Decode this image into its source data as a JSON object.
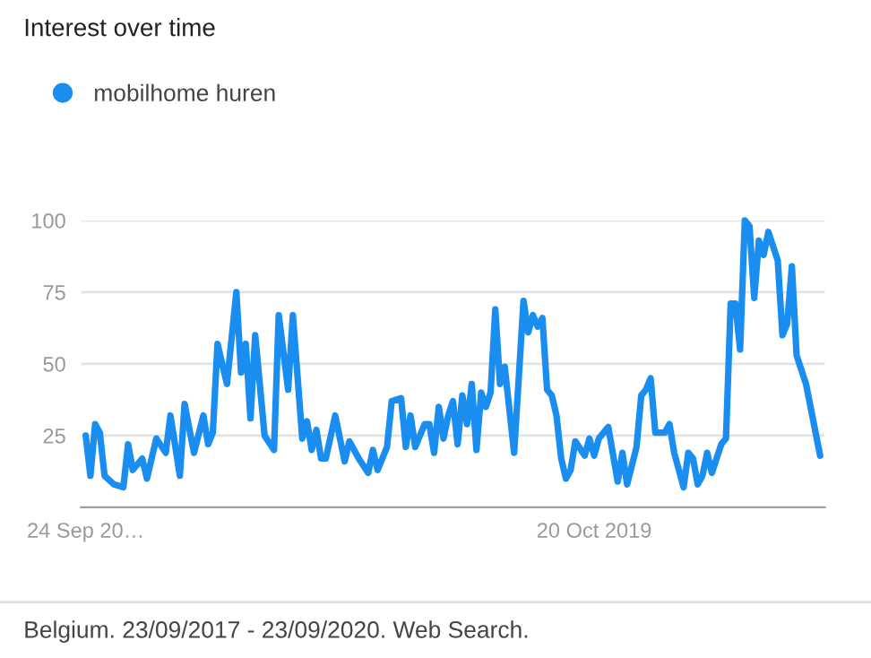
{
  "chart_data": {
    "type": "line",
    "title": "Interest over time",
    "x": [
      "2017-09-24",
      "2017-10-01",
      "2017-10-08",
      "2017-10-15",
      "2017-10-22",
      "2017-11-05",
      "2017-11-19",
      "2017-11-26",
      "2017-12-03",
      "2017-12-17",
      "2017-12-24",
      "2018-01-07",
      "2018-01-21",
      "2018-01-28",
      "2018-02-11",
      "2018-02-18",
      "2018-03-04",
      "2018-03-18",
      "2018-03-25",
      "2018-04-01",
      "2018-04-08",
      "2018-04-22",
      "2018-05-06",
      "2018-05-13",
      "2018-05-20",
      "2018-05-27",
      "2018-06-03",
      "2018-06-17",
      "2018-07-01",
      "2018-07-08",
      "2018-07-22",
      "2018-07-29",
      "2018-08-12",
      "2018-08-19",
      "2018-08-26",
      "2018-09-02",
      "2018-09-09",
      "2018-09-16",
      "2018-09-30",
      "2018-10-14",
      "2018-10-21",
      "2018-11-04",
      "2018-11-18",
      "2018-11-25",
      "2018-12-02",
      "2018-12-16",
      "2018-12-23",
      "2019-01-06",
      "2019-01-13",
      "2019-01-20",
      "2019-01-27",
      "2019-02-10",
      "2019-02-17",
      "2019-02-24",
      "2019-03-03",
      "2019-03-10",
      "2019-03-17",
      "2019-03-24",
      "2019-03-31",
      "2019-04-07",
      "2019-04-14",
      "2019-04-21",
      "2019-04-28",
      "2019-05-05",
      "2019-05-12",
      "2019-05-19",
      "2019-05-26",
      "2019-06-02",
      "2019-06-09",
      "2019-06-23",
      "2019-07-07",
      "2019-07-14",
      "2019-07-21",
      "2019-07-28",
      "2019-08-04",
      "2019-08-11",
      "2019-08-18",
      "2019-08-25",
      "2019-09-01",
      "2019-09-08",
      "2019-09-15",
      "2019-09-22",
      "2019-10-06",
      "2019-10-13",
      "2019-10-20",
      "2019-10-27",
      "2019-11-10",
      "2019-11-24",
      "2019-12-01",
      "2019-12-08",
      "2019-12-22",
      "2019-12-29",
      "2020-01-05",
      "2020-01-12",
      "2020-01-19",
      "2020-02-02",
      "2020-02-09",
      "2020-02-16",
      "2020-03-01",
      "2020-03-08",
      "2020-03-15",
      "2020-03-22",
      "2020-03-29",
      "2020-04-05",
      "2020-04-12",
      "2020-04-26",
      "2020-05-03",
      "2020-05-10",
      "2020-05-17",
      "2020-05-24",
      "2020-05-31",
      "2020-06-07",
      "2020-06-14",
      "2020-06-21",
      "2020-06-28",
      "2020-07-05",
      "2020-07-19",
      "2020-07-26",
      "2020-08-02",
      "2020-08-09",
      "2020-08-16",
      "2020-08-30",
      "2020-09-20"
    ],
    "series": [
      {
        "name": "mobilhome huren",
        "color": "#1a8ef0",
        "values": [
          25,
          11,
          29,
          26,
          11,
          8,
          7,
          22,
          13,
          17,
          10,
          24,
          19,
          32,
          11,
          36,
          19,
          32,
          22,
          26,
          57,
          43,
          75,
          47,
          57,
          31,
          60,
          25,
          20,
          67,
          41,
          67,
          24,
          30,
          20,
          27,
          17,
          17,
          32,
          16,
          23,
          17,
          12,
          20,
          13,
          21,
          37,
          38,
          21,
          32,
          21,
          29,
          29,
          19,
          35,
          24,
          32,
          37,
          22,
          39,
          29,
          43,
          20,
          40,
          35,
          40,
          69,
          43,
          49,
          19,
          72,
          61,
          67,
          63,
          66,
          41,
          39,
          32,
          17,
          10,
          13,
          23,
          18,
          24,
          18,
          24,
          28,
          9,
          19,
          8,
          21,
          39,
          41,
          45,
          26,
          26,
          29,
          19,
          7,
          19,
          17,
          8,
          11,
          19,
          12,
          22,
          24,
          71,
          71,
          55,
          100,
          98,
          73,
          93,
          88,
          96,
          86,
          60,
          64,
          84,
          53,
          43,
          18
        ]
      }
    ],
    "xlim": [
      "2017-09-17",
      "2020-09-27"
    ],
    "xticks": [
      {
        "value": "2017-09-24",
        "label": "24 Sep 20…"
      },
      {
        "value": "2019-10-20",
        "label": "20 Oct 2019"
      }
    ],
    "ylim": [
      0,
      100
    ],
    "yticks": [
      25,
      50,
      75,
      100
    ],
    "grid": "y",
    "legend": "top left",
    "marker": "none",
    "line_style": "solid",
    "annotations": [
      "Belgium. 23/09/2017 - 23/09/2020. Web Search."
    ]
  }
}
